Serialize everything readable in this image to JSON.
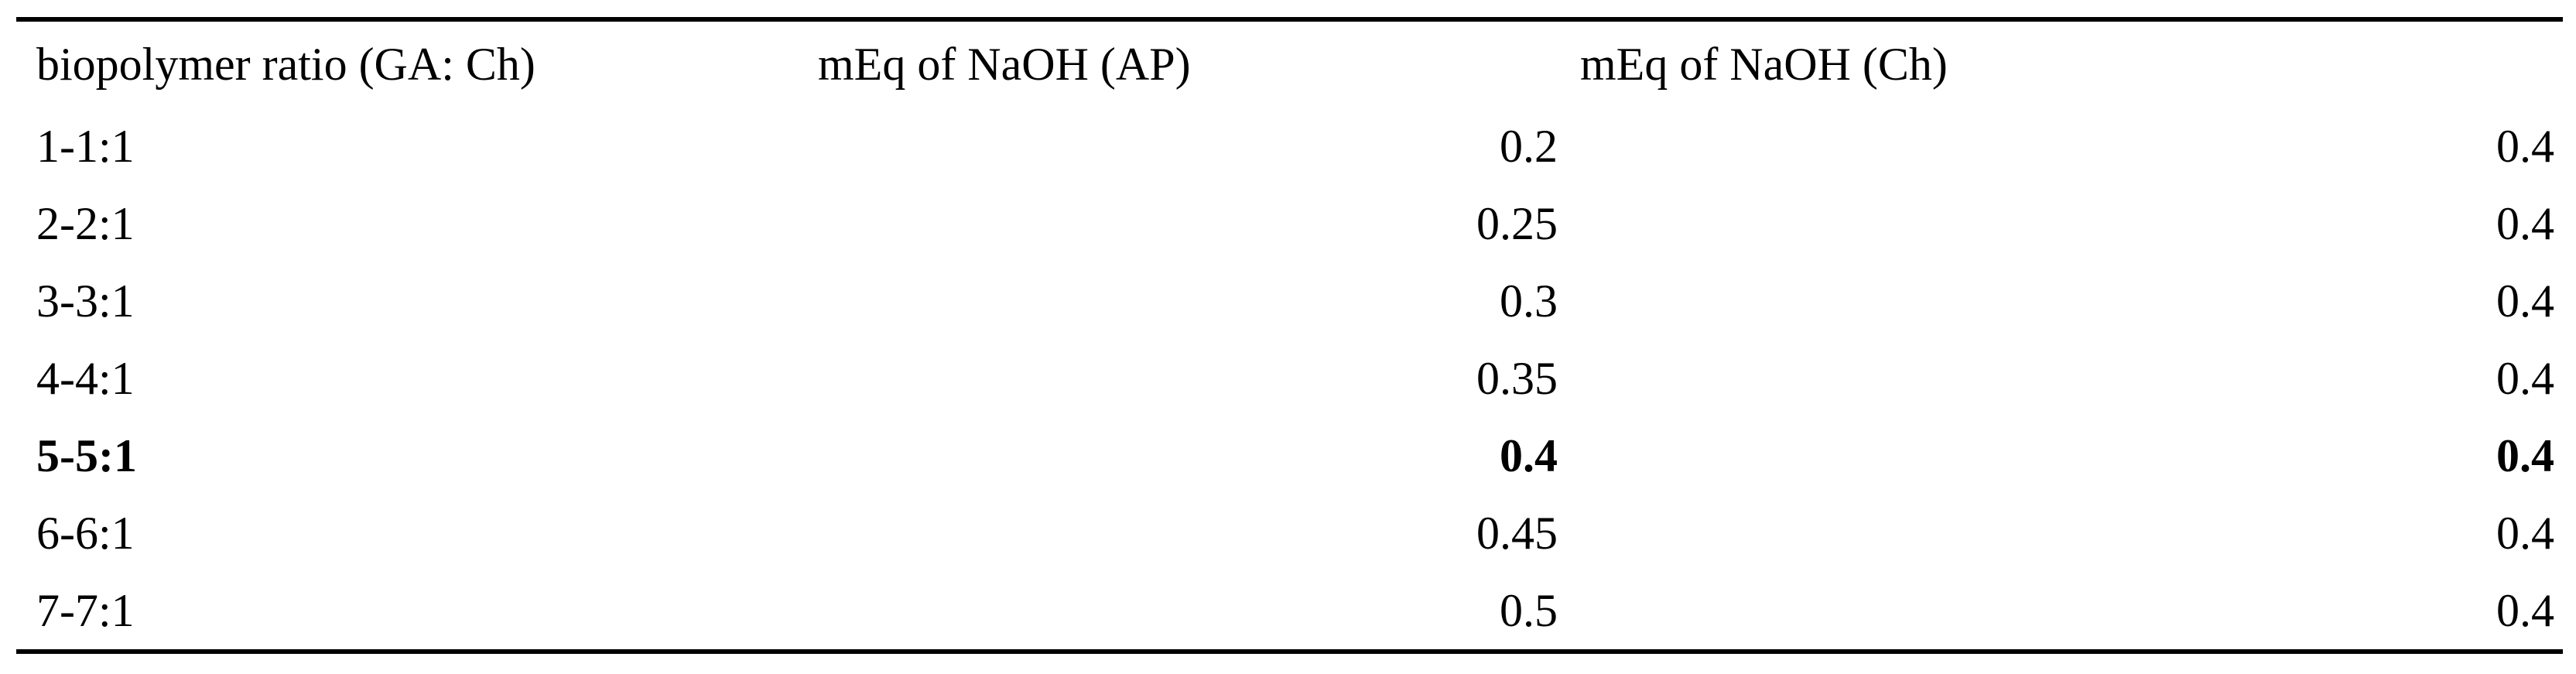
{
  "table": {
    "header": [
      "biopolymer ratio (GA: Ch)",
      "mEq of NaOH (AP)",
      "mEq of NaOH (Ch)"
    ],
    "rows": [
      [
        "1-1:1",
        0.2,
        0.4
      ],
      [
        "2-2:1",
        0.25,
        0.4
      ],
      [
        "3-3:1",
        0.3,
        0.4
      ],
      [
        "4-4:1",
        0.35,
        0.4
      ],
      [
        "5-5:1",
        0.4,
        0.4
      ],
      [
        "6-6:1",
        0.45,
        0.4
      ],
      [
        "7-7:1",
        0.5,
        0.4
      ]
    ]
  }
}
